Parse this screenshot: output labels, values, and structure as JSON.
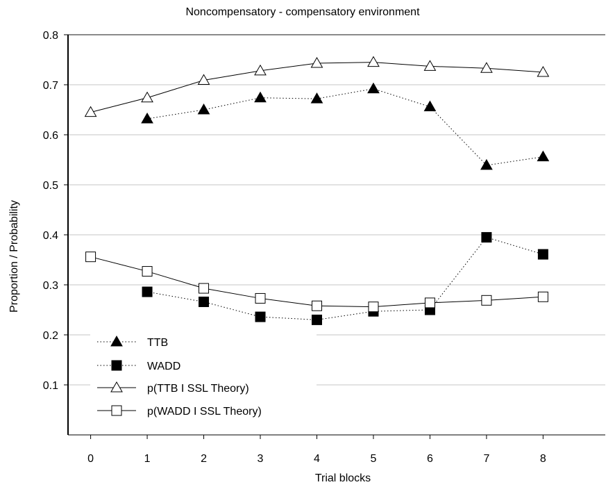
{
  "chart_data": {
    "type": "line",
    "title": "Noncompensatory - compensatory  environment",
    "xlabel": "Trial blocks",
    "ylabel": "Proportion / Probability",
    "xlim": [
      -0.4,
      9.1
    ],
    "ylim": [
      0,
      0.8
    ],
    "x_ticks": [
      0,
      1,
      2,
      3,
      4,
      5,
      6,
      7,
      8
    ],
    "x_tick_labels": [
      "0",
      "1",
      "2",
      "3",
      "4",
      "5",
      "6",
      "7",
      "8"
    ],
    "y_ticks": [
      0.1,
      0.2,
      0.3,
      0.4,
      0.5,
      0.6,
      0.7,
      0.8
    ],
    "y_tick_labels": [
      "0.1",
      "0.2",
      "0.3",
      "0.4",
      "0.5",
      "0.6",
      "0.7",
      "0.8"
    ],
    "grid": "horizontal",
    "legend_position": "bottom-left",
    "series": [
      {
        "name": "TTB",
        "line": "dotted",
        "marker": "triangle",
        "filled": true,
        "x": [
          1,
          2,
          3,
          4,
          5,
          6,
          7,
          8
        ],
        "values": [
          0.632,
          0.65,
          0.674,
          0.672,
          0.692,
          0.656,
          0.539,
          0.556
        ]
      },
      {
        "name": "WADD",
        "line": "dotted",
        "marker": "square",
        "filled": true,
        "x": [
          1,
          2,
          3,
          4,
          5,
          6,
          7,
          8
        ],
        "values": [
          0.286,
          0.266,
          0.236,
          0.23,
          0.247,
          0.25,
          0.395,
          0.361
        ]
      },
      {
        "name": "p(TTB I SSL Theory)",
        "line": "solid",
        "marker": "triangle",
        "filled": false,
        "x": [
          0,
          1,
          2,
          3,
          4,
          5,
          6,
          7,
          8
        ],
        "values": [
          0.645,
          0.674,
          0.709,
          0.728,
          0.743,
          0.745,
          0.737,
          0.733,
          0.725
        ]
      },
      {
        "name": "p(WADD I SSL Theory)",
        "line": "solid",
        "marker": "square",
        "filled": false,
        "x": [
          0,
          1,
          2,
          3,
          4,
          5,
          6,
          7,
          8
        ],
        "values": [
          0.356,
          0.327,
          0.293,
          0.273,
          0.258,
          0.256,
          0.264,
          0.269,
          0.276
        ]
      }
    ]
  }
}
